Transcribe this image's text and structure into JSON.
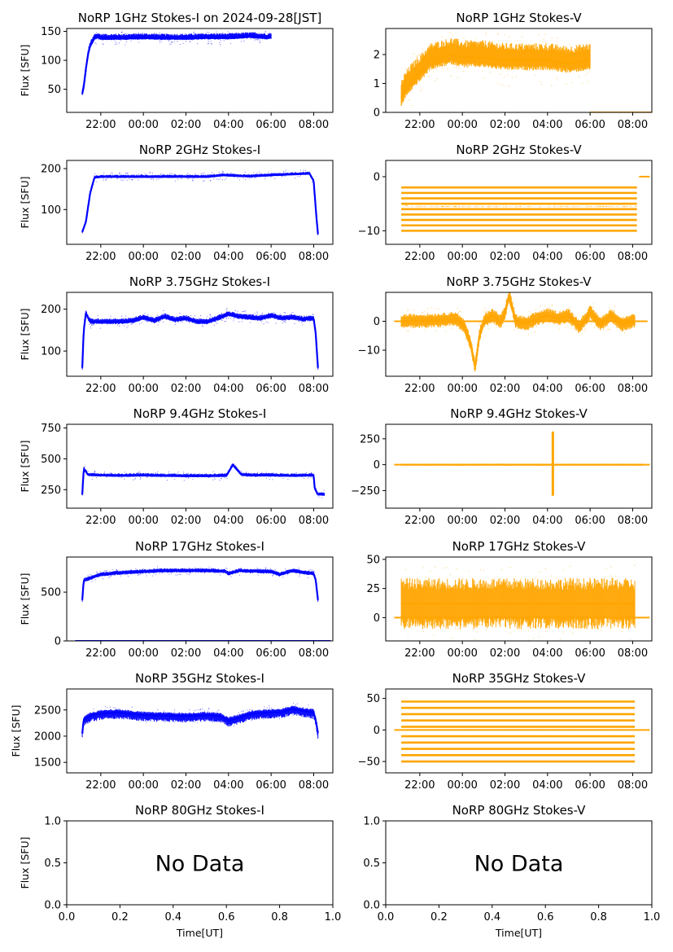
{
  "figure": {
    "xlabel": "Time[UT]",
    "ylabel": "Flux [SFU]",
    "time_ticks": [
      "22:00",
      "00:00",
      "02:00",
      "04:00",
      "06:00",
      "08:00"
    ],
    "empty_x_ticks": [
      "0.0",
      "0.2",
      "0.4",
      "0.6",
      "0.8",
      "1.0"
    ],
    "empty_y_ticks": [
      "0.0",
      "0.5",
      "1.0"
    ],
    "no_data_text": "No Data",
    "colors": {
      "stokes_i": "#0000ff",
      "stokes_v": "#ffa500"
    }
  },
  "chart_data": [
    {
      "type": "scatter",
      "title": "NoRP 1GHz Stokes-I on 2024-09-28[JST]",
      "ylabel": "Flux [SFU]",
      "xlim": [
        20.4,
        32.9
      ],
      "ylim": [
        10,
        155
      ],
      "yticks": [
        50,
        100,
        150
      ],
      "series": [
        {
          "color": "#0000ff",
          "x": [
            21.13,
            21.2,
            21.3,
            21.4,
            21.5,
            21.6,
            21.7,
            21.85,
            22,
            23,
            24,
            25,
            26,
            27,
            28,
            29,
            29.8,
            30
          ],
          "y": [
            42,
            55,
            85,
            110,
            125,
            131,
            138,
            140,
            138,
            138,
            139,
            138,
            138,
            139,
            139,
            141,
            139,
            140
          ]
        }
      ],
      "whiskers": [
        8,
        3
      ],
      "noise": [
        1.5,
        1.5
      ]
    },
    {
      "type": "scatter",
      "title": "NoRP 1GHz Stokes-V",
      "ylabel": "",
      "xlim": [
        20.4,
        32.9
      ],
      "ylim": [
        0,
        2.9
      ],
      "yticks": [
        0,
        1,
        2
      ],
      "series": [
        {
          "color": "#ffa500",
          "x": [
            21.13,
            21.3,
            21.6,
            22,
            22.5,
            23,
            23.5,
            24,
            25,
            26,
            27,
            28,
            29,
            29.9,
            30
          ],
          "y": [
            0.5,
            0.8,
            1.1,
            1.4,
            1.8,
            1.9,
            2.0,
            1.9,
            1.9,
            1.8,
            1.8,
            1.8,
            1.7,
            1.8,
            1.8
          ]
        }
      ],
      "whiskers": [
        0.6,
        0.35
      ],
      "noise": [
        0.15,
        0.15
      ],
      "baseline": {
        "x": [
          30,
          33.6
        ],
        "y": 0
      }
    },
    {
      "type": "scatter",
      "title": "NoRP 2GHz Stokes-I",
      "ylabel": "Flux [SFU]",
      "xlim": [
        20.4,
        32.9
      ],
      "ylim": [
        15,
        220
      ],
      "yticks": [
        100,
        200
      ],
      "series": [
        {
          "color": "#0000ff",
          "x": [
            21.13,
            21.3,
            21.5,
            21.7,
            22,
            23,
            24,
            25,
            26,
            27,
            27.8,
            28,
            29,
            30,
            31,
            31.8,
            32,
            32.1,
            32.2
          ],
          "y": [
            45,
            70,
            140,
            178,
            180,
            180,
            180,
            180,
            180,
            180,
            184,
            183,
            181,
            184,
            186,
            188,
            170,
            100,
            40
          ]
        }
      ],
      "whiskers": [
        5,
        3
      ],
      "noise": [
        4,
        3
      ]
    },
    {
      "type": "scatter",
      "title": "NoRP 2GHz Stokes-V",
      "ylabel": "",
      "xlim": [
        20.4,
        32.9
      ],
      "ylim": [
        -12.5,
        3
      ],
      "yticks": [
        0,
        -10
      ],
      "series": [
        {
          "color": "#ffa500",
          "x": [
            21.13,
            21.5,
            22,
            24,
            26,
            28,
            30,
            32,
            32.2
          ],
          "y": [
            -5,
            -5.5,
            -5.5,
            -5.5,
            -5.5,
            -5.5,
            -5.5,
            -5.5,
            -5.5
          ]
        }
      ],
      "whiskers": [
        0,
        0
      ],
      "noise": [
        0,
        0
      ],
      "levels": [
        -10,
        -9,
        -8,
        -7,
        -6,
        -5,
        -4,
        -3,
        -2
      ],
      "baseline": {
        "x": [
          32.3,
          32.8
        ],
        "y": 0
      }
    },
    {
      "type": "scatter",
      "title": "NoRP 3.75GHz Stokes-I",
      "ylabel": "Flux [SFU]",
      "xlim": [
        20.4,
        32.9
      ],
      "ylim": [
        40,
        240
      ],
      "yticks": [
        100,
        200
      ],
      "series": [
        {
          "color": "#0000ff",
          "x": [
            21.13,
            21.2,
            21.3,
            21.5,
            22,
            23,
            23.5,
            24,
            24.5,
            25,
            25.5,
            26,
            26.5,
            27,
            27.5,
            28,
            28.5,
            29,
            29.5,
            30,
            30.5,
            31,
            31.5,
            32,
            32.1,
            32.2
          ],
          "y": [
            60,
            150,
            190,
            170,
            170,
            170,
            172,
            180,
            172,
            182,
            174,
            178,
            170,
            170,
            178,
            188,
            182,
            180,
            178,
            184,
            178,
            180,
            176,
            178,
            140,
            60
          ]
        }
      ],
      "whiskers": [
        8,
        6
      ],
      "noise": [
        5,
        5
      ]
    },
    {
      "type": "scatter",
      "title": "NoRP 3.75GHz Stokes-V",
      "ylabel": "",
      "xlim": [
        20.4,
        32.9
      ],
      "ylim": [
        -19,
        10
      ],
      "yticks": [
        0,
        -10
      ],
      "series": [
        {
          "color": "#ffa500",
          "x": [
            21.13,
            22,
            23,
            23.7,
            24.1,
            24.4,
            24.6,
            24.8,
            25,
            25.4,
            25.8,
            26,
            26.2,
            26.5,
            27,
            27.5,
            28,
            28.5,
            29,
            29.5,
            30,
            30.5,
            31,
            31.5,
            32,
            32.1
          ],
          "y": [
            0,
            0.2,
            0.4,
            1,
            -2,
            -8,
            -16,
            -5,
            0,
            2,
            0,
            3,
            9,
            0,
            -1,
            1,
            2,
            1,
            2,
            -2,
            3,
            -1,
            2,
            -1,
            0,
            0
          ]
        }
      ],
      "whiskers": [
        2.5,
        2.5
      ],
      "noise": [
        1.2,
        1.2
      ],
      "baseline": {
        "x": [
          20.8,
          32.7
        ],
        "y": 0
      }
    },
    {
      "type": "scatter",
      "title": "NoRP 9.4GHz Stokes-I",
      "ylabel": "Flux [SFU]",
      "xlim": [
        20.4,
        32.9
      ],
      "ylim": [
        100,
        780
      ],
      "yticks": [
        250,
        500,
        750
      ],
      "series": [
        {
          "color": "#0000ff",
          "x": [
            21.13,
            21.2,
            21.4,
            22,
            23,
            24,
            25,
            26,
            27,
            27.9,
            28.2,
            28.6,
            29,
            30,
            31,
            32,
            32.05,
            32.2,
            32.5
          ],
          "y": [
            210,
            420,
            370,
            365,
            362,
            365,
            362,
            360,
            360,
            362,
            450,
            372,
            365,
            365,
            362,
            365,
            260,
            210,
            210
          ]
        }
      ],
      "whiskers": [
        20,
        10
      ],
      "noise": [
        10,
        10
      ]
    },
    {
      "type": "scatter",
      "title": "NoRP 9.4GHz Stokes-V",
      "ylabel": "",
      "xlim": [
        20.4,
        32.9
      ],
      "ylim": [
        -420,
        390
      ],
      "yticks": [
        250,
        0,
        -250
      ],
      "series": [
        {
          "color": "#ffa500",
          "x": [
            21.13,
            24,
            28,
            28.2,
            28.4,
            32,
            32.5
          ],
          "y": [
            0,
            0,
            0,
            0,
            0,
            0,
            0
          ]
        }
      ],
      "whiskers": [
        0,
        0
      ],
      "noise": [
        6,
        6
      ],
      "spike": {
        "x": 28.25,
        "lo": -300,
        "hi": 320
      },
      "baseline": {
        "x": [
          20.8,
          32.8
        ],
        "y": 0
      }
    },
    {
      "type": "scatter",
      "title": "NoRP 17GHz Stokes-I",
      "ylabel": "Flux [SFU]",
      "xlim": [
        20.4,
        32.9
      ],
      "ylim": [
        0,
        860
      ],
      "yticks": [
        0,
        500
      ],
      "series": [
        {
          "color": "#0000ff",
          "x": [
            21.13,
            21.2,
            22,
            23,
            24,
            25,
            26,
            27,
            27.8,
            28,
            28.5,
            29,
            30,
            30.4,
            31,
            31.5,
            32,
            32.1,
            32.2
          ],
          "y": [
            420,
            620,
            680,
            700,
            710,
            720,
            720,
            720,
            715,
            690,
            720,
            715,
            710,
            680,
            720,
            700,
            690,
            620,
            420
          ]
        }
      ],
      "whiskers": [
        25,
        20
      ],
      "noise": [
        15,
        15
      ],
      "baseline": {
        "x": [
          20.8,
          32.8
        ],
        "y": 0
      }
    },
    {
      "type": "scatter",
      "title": "NoRP 17GHz Stokes-V",
      "ylabel": "",
      "xlim": [
        20.4,
        32.9
      ],
      "ylim": [
        -20,
        52
      ],
      "yticks": [
        0,
        25,
        50
      ],
      "series": [
        {
          "color": "#ffa500",
          "x": [
            21.13,
            22,
            24,
            26,
            28,
            30,
            32,
            32.1
          ],
          "y": [
            12,
            12,
            12,
            12,
            12,
            12,
            12,
            12
          ]
        }
      ],
      "whiskers": [
        22,
        22
      ],
      "noise": [
        6,
        6
      ],
      "baseline": {
        "x": [
          20.8,
          32.8
        ],
        "y": 0
      }
    },
    {
      "type": "scatter",
      "title": "NoRP 35GHz Stokes-I",
      "ylabel": "Flux [SFU]",
      "xlim": [
        20.4,
        32.9
      ],
      "ylim": [
        1300,
        2900
      ],
      "yticks": [
        1500,
        2000,
        2500
      ],
      "series": [
        {
          "color": "#0000ff",
          "x": [
            21.13,
            21.2,
            21.6,
            22,
            22.8,
            23.5,
            24,
            25,
            26,
            27,
            27.6,
            28,
            28.5,
            29,
            29.5,
            30,
            30.5,
            31,
            31.5,
            32,
            32.1,
            32.2
          ],
          "y": [
            2050,
            2320,
            2400,
            2430,
            2450,
            2420,
            2400,
            2390,
            2380,
            2400,
            2380,
            2300,
            2350,
            2420,
            2440,
            2450,
            2460,
            2520,
            2480,
            2450,
            2300,
            2060
          ]
        }
      ],
      "whiskers": [
        70,
        120
      ],
      "noise": [
        40,
        40
      ]
    },
    {
      "type": "scatter",
      "title": "NoRP 35GHz Stokes-V",
      "ylabel": "",
      "xlim": [
        20.4,
        32.9
      ],
      "ylim": [
        -68,
        65
      ],
      "yticks": [
        50,
        0,
        -50
      ],
      "series": [
        {
          "color": "#ffa500",
          "x": [
            21.13,
            24,
            28,
            32,
            32.1
          ],
          "y": [
            0,
            0,
            0,
            0,
            0
          ]
        }
      ],
      "whiskers": [
        0,
        0
      ],
      "noise": [
        0,
        0
      ],
      "levels": [
        -50,
        -40,
        -30,
        -20,
        -10,
        5,
        15,
        25,
        35,
        45
      ],
      "baseline": {
        "x": [
          20.8,
          32.8
        ],
        "y": 0
      }
    },
    {
      "type": "scatter",
      "title": "NoRP 80GHz Stokes-I",
      "ylabel": "Flux [SFU]",
      "xlim": [
        0,
        1
      ],
      "ylim": [
        0,
        1
      ],
      "empty": true
    },
    {
      "type": "scatter",
      "title": "NoRP 80GHz Stokes-V",
      "ylabel": "",
      "xlim": [
        0,
        1
      ],
      "ylim": [
        0,
        1
      ],
      "empty": true
    }
  ]
}
